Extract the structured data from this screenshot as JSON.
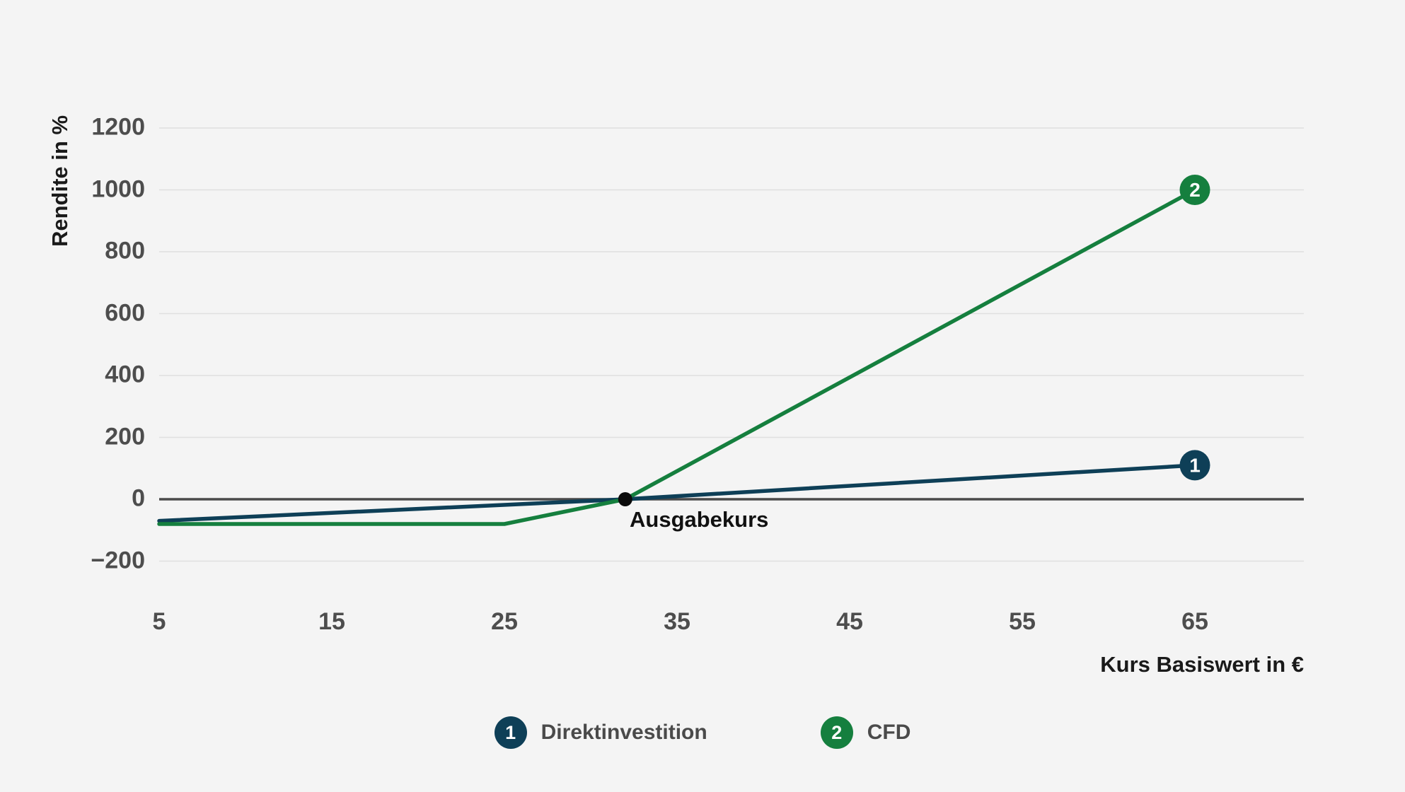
{
  "page": {
    "background": "#f4f4f4",
    "grid_color": "#dfdfdf",
    "zero_line_color": "#4a4a4a",
    "tick_label_color": "#4d4d4d"
  },
  "chart_data": {
    "type": "line",
    "title": "",
    "xlabel": "Kurs Basiswert in €",
    "ylabel": "Rendite in %",
    "x_ticks": [
      5,
      15,
      25,
      35,
      45,
      55,
      65
    ],
    "y_ticks": [
      1200,
      1000,
      800,
      600,
      400,
      200,
      0,
      -200
    ],
    "x_range": [
      5,
      65
    ],
    "y_range": [
      -200,
      1200
    ],
    "grid": "horizontal-only",
    "legend_position": "bottom-center",
    "series": [
      {
        "name": "Direktinvestition",
        "marker": "1",
        "color": "#0e3f57",
        "points": [
          [
            5,
            -70
          ],
          [
            32,
            0
          ],
          [
            65,
            110
          ]
        ]
      },
      {
        "name": "CFD",
        "marker": "2",
        "color": "#157f3e",
        "points": [
          [
            5,
            -80
          ],
          [
            25,
            -80
          ],
          [
            32,
            0
          ],
          [
            65,
            1000
          ]
        ]
      }
    ],
    "annotation": {
      "label": "Ausgabekurs",
      "x": 32,
      "y": 0,
      "dot_color": "#0b0b0b"
    }
  }
}
